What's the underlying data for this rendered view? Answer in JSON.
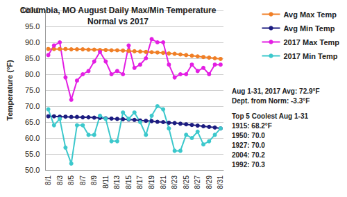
{
  "chart_data": {
    "type": "line",
    "title": "Columbia, MO August Daily Max/Min Temperature\nNormal vs 2017",
    "y_label": "Temperature (°F)",
    "categories": [
      "8/1",
      null,
      "8/3",
      null,
      "8/5",
      null,
      "8/7",
      null,
      "8/9",
      null,
      "8/11",
      null,
      "8/13",
      null,
      "8/15",
      null,
      "8/17",
      null,
      "8/19",
      null,
      "8/21",
      null,
      "8/23",
      null,
      "8/25",
      null,
      "8/27",
      null,
      "8/29",
      null,
      "8/31"
    ],
    "series": [
      {
        "name": "Avg Max Temp",
        "color": "#f07f26",
        "marker": "circle",
        "line_style": "solid",
        "values": [
          87.9,
          87.9,
          87.9,
          87.9,
          87.8,
          87.8,
          87.8,
          87.7,
          87.7,
          87.6,
          87.6,
          87.5,
          87.5,
          87.4,
          87.3,
          87.2,
          87.1,
          87.0,
          86.9,
          86.8,
          86.7,
          86.5,
          86.4,
          86.2,
          86.0,
          85.8,
          85.6,
          85.4,
          85.2,
          85.0,
          84.8
        ]
      },
      {
        "name": "Avg Min Temp",
        "color": "#1c1c80",
        "marker": "circle",
        "line_style": "solid",
        "values": [
          66.8,
          66.8,
          66.7,
          66.7,
          66.6,
          66.6,
          66.5,
          66.5,
          66.4,
          66.3,
          66.2,
          66.1,
          66.0,
          65.9,
          65.8,
          65.7,
          65.5,
          65.4,
          65.3,
          65.1,
          65.0,
          64.8,
          64.7,
          64.5,
          64.3,
          64.1,
          63.9,
          63.7,
          63.5,
          63.3,
          63.0
        ]
      },
      {
        "name": "2017 Max Temp",
        "color": "#e31ee3",
        "marker": "circle",
        "line_style": "solid",
        "values": [
          86,
          89,
          90,
          79,
          72,
          78,
          80,
          81,
          84,
          87,
          84,
          80,
          81,
          80,
          89,
          82,
          83,
          85,
          91,
          90,
          90,
          83,
          79,
          80,
          80,
          83,
          81,
          82,
          80,
          83,
          83
        ]
      },
      {
        "name": "2017 Min Temp",
        "color": "#3cc8cc",
        "marker": "circle",
        "line_style": "solid",
        "values": [
          69,
          64,
          66,
          57,
          52,
          64,
          64,
          61,
          61,
          67,
          66,
          59,
          59,
          68,
          66,
          68,
          65,
          61,
          67,
          70,
          69,
          63,
          56,
          56,
          61,
          60,
          62,
          58,
          59,
          61,
          63
        ]
      }
    ],
    "ylim": [
      50,
      100
    ],
    "yticks": [
      {
        "value": 50,
        "label": "50.0"
      },
      {
        "value": 55,
        "label": "55.0"
      },
      {
        "value": 60,
        "label": "60.0"
      },
      {
        "value": 65,
        "label": "65.0"
      },
      {
        "value": 70,
        "label": "70.0"
      },
      {
        "value": 75,
        "label": "75.0"
      },
      {
        "value": 80,
        "label": "80.0"
      },
      {
        "value": 85,
        "label": "85.0"
      },
      {
        "value": 90,
        "label": "90.0"
      },
      {
        "value": 95,
        "label": "95.0"
      },
      {
        "value": 100,
        "label": "100.0"
      }
    ],
    "grid": true,
    "legend": "right",
    "annotations": [
      [
        "Aug 1-31, 2017 Avg: 72.9°F",
        "Dept. from Norm: -3.3°F"
      ],
      [
        "Top 5 Coolest Aug 1-31",
        "1915: 68.2°F",
        "1950: 70.0",
        "1927: 70.0",
        "2004: 70.2",
        "1992: 70.3"
      ]
    ]
  }
}
